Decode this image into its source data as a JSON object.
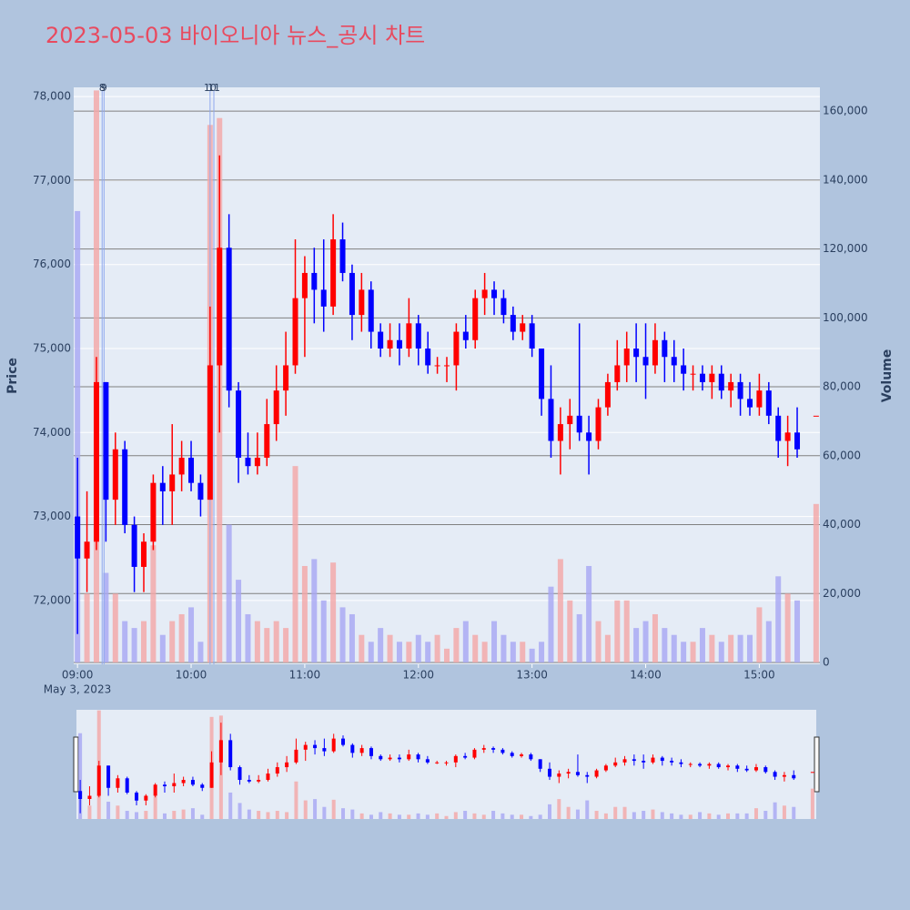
{
  "chart_data": {
    "type": "candlestick",
    "title": "2023-05-03 바이오니아 뉴스_공시 차트",
    "y_title": "Price",
    "y2_title": "Volume",
    "x_date_label": "May 3, 2023",
    "increasing_color": "#ff0000",
    "decreasing_color": "#0000ff",
    "volume_increasing_color": "#f4a6a6",
    "volume_decreasing_color": "#a6a6f4",
    "xlim": [
      "2023-05-03 08:58",
      "2023-05-03 15:32"
    ],
    "xticks": [
      {
        "value": "2023-05-03 09:00",
        "label": "09:00"
      },
      {
        "value": "2023-05-03 10:00",
        "label": "10:00"
      },
      {
        "value": "2023-05-03 11:00",
        "label": "11:00"
      },
      {
        "value": "2023-05-03 12:00",
        "label": "12:00"
      },
      {
        "value": "2023-05-03 13:00",
        "label": "13:00"
      },
      {
        "value": "2023-05-03 14:00",
        "label": "14:00"
      },
      {
        "value": "2023-05-03 15:00",
        "label": "15:00"
      }
    ],
    "ylim": [
      71240,
      78110
    ],
    "yticks": [
      {
        "value": 72000,
        "label": "72,000"
      },
      {
        "value": 73000,
        "label": "73,000"
      },
      {
        "value": 74000,
        "label": "74,000"
      },
      {
        "value": 75000,
        "label": "75,000"
      },
      {
        "value": 76000,
        "label": "76,000"
      },
      {
        "value": 77000,
        "label": "77,000"
      },
      {
        "value": 78000,
        "label": "78,000"
      }
    ],
    "y2lim": [
      -530,
      166900
    ],
    "y2ticks": [
      0,
      {
        "value": 20000,
        "label": "20,000"
      },
      {
        "value": 40000,
        "label": "40,000"
      },
      {
        "value": 60000,
        "label": "60,000"
      },
      {
        "value": 80000,
        "label": "80,000"
      },
      {
        "value": 100000,
        "label": "100,000"
      },
      {
        "value": 120000,
        "label": "120,000"
      },
      {
        "value": 140000,
        "label": "140,000"
      },
      {
        "value": 160000,
        "label": "160,000"
      }
    ],
    "annotations": [
      {
        "x": "2023-05-03 09:13",
        "label": "8"
      },
      {
        "x": "2023-05-03 09:14",
        "label": "9"
      },
      {
        "x": "2023-05-03 10:10",
        "label": "10"
      },
      {
        "x": "2023-05-03 10:12",
        "label": "11"
      }
    ],
    "x": [
      "2023-05-03 09:00",
      "2023-05-03 09:05",
      "2023-05-03 09:10",
      "2023-05-03 09:15",
      "2023-05-03 09:20",
      "2023-05-03 09:25",
      "2023-05-03 09:30",
      "2023-05-03 09:35",
      "2023-05-03 09:40",
      "2023-05-03 09:45",
      "2023-05-03 09:50",
      "2023-05-03 09:55",
      "2023-05-03 10:00",
      "2023-05-03 10:05",
      "2023-05-03 10:10",
      "2023-05-03 10:15",
      "2023-05-03 10:20",
      "2023-05-03 10:25",
      "2023-05-03 10:30",
      "2023-05-03 10:35",
      "2023-05-03 10:40",
      "2023-05-03 10:45",
      "2023-05-03 10:50",
      "2023-05-03 10:55",
      "2023-05-03 11:00",
      "2023-05-03 11:05",
      "2023-05-03 11:10",
      "2023-05-03 11:15",
      "2023-05-03 11:20",
      "2023-05-03 11:25",
      "2023-05-03 11:30",
      "2023-05-03 11:35",
      "2023-05-03 11:40",
      "2023-05-03 11:45",
      "2023-05-03 11:50",
      "2023-05-03 11:55",
      "2023-05-03 12:00",
      "2023-05-03 12:05",
      "2023-05-03 12:10",
      "2023-05-03 12:15",
      "2023-05-03 12:20",
      "2023-05-03 12:25",
      "2023-05-03 12:30",
      "2023-05-03 12:35",
      "2023-05-03 12:40",
      "2023-05-03 12:45",
      "2023-05-03 12:50",
      "2023-05-03 12:55",
      "2023-05-03 13:00",
      "2023-05-03 13:05",
      "2023-05-03 13:10",
      "2023-05-03 13:15",
      "2023-05-03 13:20",
      "2023-05-03 13:25",
      "2023-05-03 13:30",
      "2023-05-03 13:35",
      "2023-05-03 13:40",
      "2023-05-03 13:45",
      "2023-05-03 13:50",
      "2023-05-03 13:55",
      "2023-05-03 14:00",
      "2023-05-03 14:05",
      "2023-05-03 14:10",
      "2023-05-03 14:15",
      "2023-05-03 14:20",
      "2023-05-03 14:25",
      "2023-05-03 14:30",
      "2023-05-03 14:35",
      "2023-05-03 14:40",
      "2023-05-03 14:45",
      "2023-05-03 14:50",
      "2023-05-03 14:55",
      "2023-05-03 15:00",
      "2023-05-03 15:05",
      "2023-05-03 15:10",
      "2023-05-03 15:15",
      "2023-05-03 15:20",
      "2023-05-03 15:30"
    ],
    "open": [
      73000,
      72500,
      72700,
      74600,
      73200,
      73800,
      72900,
      72400,
      72700,
      73400,
      73300,
      73500,
      73700,
      73400,
      73200,
      74800,
      76200,
      74500,
      73700,
      73600,
      73700,
      74100,
      74500,
      74800,
      75600,
      75900,
      75700,
      75500,
      76300,
      75900,
      75400,
      75700,
      75200,
      75000,
      75100,
      75000,
      75300,
      75000,
      74800,
      74800,
      74800,
      75200,
      75100,
      75600,
      75700,
      75600,
      75400,
      75200,
      75300,
      75000,
      74400,
      73900,
      74100,
      74200,
      74000,
      73900,
      74300,
      74600,
      74800,
      75000,
      74900,
      74800,
      75100,
      74900,
      74800,
      74700,
      74700,
      74600,
      74700,
      74500,
      74600,
      74400,
      74300,
      74500,
      74200,
      73900,
      74000,
      74200
    ],
    "high": [
      73700,
      73300,
      74900,
      74600,
      74000,
      73900,
      73000,
      72800,
      73500,
      73600,
      74100,
      73900,
      73900,
      73500,
      75500,
      77300,
      76600,
      74600,
      74000,
      74000,
      74400,
      74800,
      75200,
      76300,
      76100,
      76200,
      76300,
      76600,
      76500,
      76000,
      75900,
      75800,
      75300,
      75300,
      75300,
      75600,
      75400,
      75200,
      74900,
      74900,
      75300,
      75400,
      75700,
      75900,
      75800,
      75700,
      75500,
      75400,
      75400,
      75000,
      74800,
      74300,
      74400,
      75300,
      74200,
      74400,
      74700,
      75100,
      75200,
      75300,
      75300,
      75300,
      75200,
      75100,
      75000,
      74800,
      74800,
      74800,
      74800,
      74700,
      74700,
      74600,
      74700,
      74600,
      74300,
      74200,
      74300,
      74200
    ],
    "low": [
      71600,
      72100,
      72600,
      72700,
      72900,
      72800,
      72100,
      72100,
      72600,
      72900,
      72900,
      73300,
      73300,
      73000,
      73200,
      74000,
      74300,
      73400,
      73500,
      73500,
      73600,
      73900,
      74200,
      74700,
      74900,
      75300,
      75200,
      75400,
      75800,
      75100,
      75200,
      75000,
      74900,
      74900,
      74800,
      74900,
      74800,
      74700,
      74700,
      74600,
      74500,
      75000,
      75000,
      75400,
      75400,
      75300,
      75100,
      75100,
      74900,
      74200,
      73700,
      73500,
      73800,
      73900,
      73500,
      73800,
      74200,
      74500,
      74600,
      74600,
      74400,
      74700,
      74600,
      74600,
      74500,
      74500,
      74500,
      74400,
      74400,
      74300,
      74200,
      74200,
      74200,
      74100,
      73700,
      73600,
      73700,
      74200
    ],
    "close": [
      72500,
      72700,
      74600,
      73200,
      73800,
      72900,
      72400,
      72700,
      73400,
      73300,
      73500,
      73700,
      73400,
      73200,
      74800,
      76200,
      74500,
      73700,
      73600,
      73700,
      74100,
      74500,
      74800,
      75600,
      75900,
      75700,
      75500,
      76300,
      75900,
      75400,
      75700,
      75200,
      75000,
      75100,
      75000,
      75300,
      75000,
      74800,
      74800,
      74800,
      75200,
      75100,
      75600,
      75700,
      75600,
      75400,
      75200,
      75300,
      75000,
      74400,
      73900,
      74100,
      74200,
      74000,
      73900,
      74300,
      74600,
      74800,
      75000,
      74900,
      74800,
      75100,
      74900,
      74800,
      74700,
      74700,
      74600,
      74700,
      74500,
      74600,
      74400,
      74300,
      74500,
      74200,
      73900,
      74000,
      73800,
      74200
    ],
    "volume": [
      131000,
      20000,
      166000,
      26000,
      20000,
      12000,
      10000,
      12000,
      34000,
      8000,
      12000,
      14000,
      16000,
      6000,
      156000,
      158000,
      40000,
      24000,
      14000,
      12000,
      10000,
      12000,
      10000,
      57000,
      28000,
      30000,
      18000,
      29000,
      16000,
      14000,
      8000,
      6000,
      10000,
      8000,
      6000,
      6000,
      8000,
      6000,
      8000,
      4000,
      10000,
      12000,
      8000,
      6000,
      12000,
      8000,
      6000,
      6000,
      4000,
      6000,
      22000,
      30000,
      18000,
      14000,
      28000,
      12000,
      8000,
      18000,
      18000,
      10000,
      12000,
      14000,
      10000,
      8000,
      6000,
      6000,
      10000,
      8000,
      6000,
      8000,
      8000,
      8000,
      16000,
      12000,
      25000,
      20000,
      18000,
      46000
    ]
  }
}
